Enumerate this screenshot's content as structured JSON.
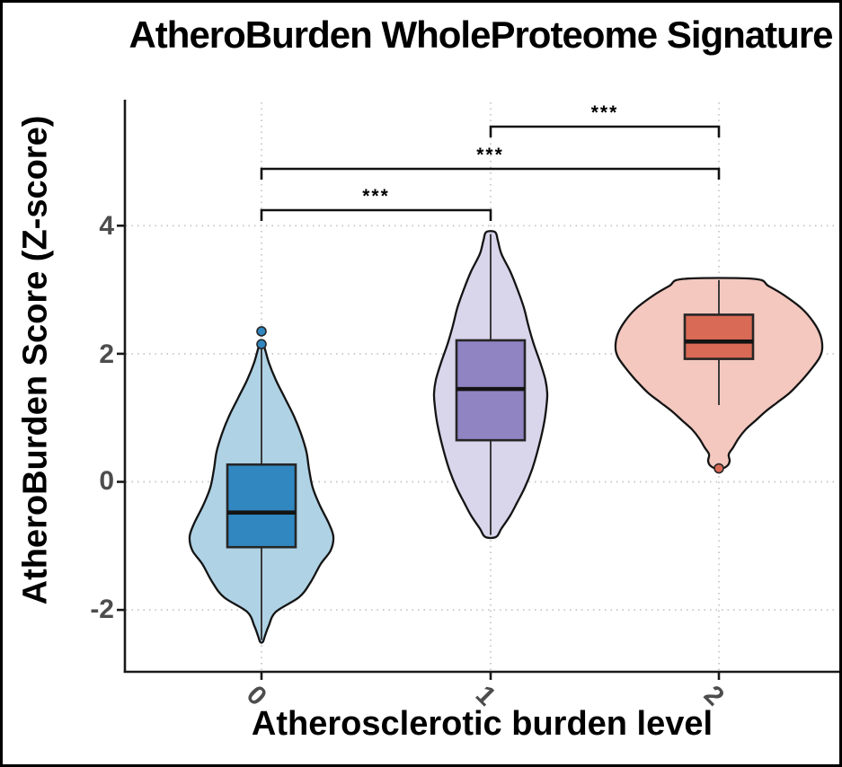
{
  "title": "AtheroBurden WholeProteome Signature",
  "axes": {
    "x_label": "Atherosclerotic burden level",
    "y_label": "AtheroBurden Score (Z-score)",
    "x_ticks": [
      "0",
      "1",
      "2"
    ],
    "y_ticks": [
      "4",
      "2",
      "0",
      "-2"
    ]
  },
  "significance": [
    {
      "pair": [
        0,
        1
      ],
      "label": "***",
      "line_y": 231
    },
    {
      "pair": [
        0,
        2
      ],
      "label": "***",
      "line_y": 185
    },
    {
      "pair": [
        1,
        2
      ],
      "label": "***",
      "line_y": 138
    }
  ],
  "colors": {
    "axis_text": "#4d4d4d",
    "title_text": "#000000",
    "grid": "#c9c9c9",
    "axis_line": "#1a1a1a",
    "bracket": "#111111",
    "group0_violin": "#AFD2E5",
    "group0_box": "#3187C0",
    "group1_violin": "#D9D5EB",
    "group1_box": "#9084C3",
    "group2_violin": "#F4C8BF",
    "group2_box": "#D96A55"
  },
  "chart_data": {
    "type": "violin",
    "title": "AtheroBurden WholeProteome Signature",
    "xlabel": "Atherosclerotic burden level",
    "ylabel": "AtheroBurden Score (Z-score)",
    "categories": [
      "0",
      "1",
      "2"
    ],
    "y_tick_values": [
      4,
      2,
      0,
      -2
    ],
    "ylim": [
      -3.0,
      6.0
    ],
    "grid": "dotted",
    "legend": "none",
    "significance_annotations": [
      {
        "groups": [
          "0",
          "1"
        ],
        "label": "***"
      },
      {
        "groups": [
          "0",
          "2"
        ],
        "label": "***"
      },
      {
        "groups": [
          "1",
          "2"
        ],
        "label": "***"
      }
    ],
    "series": [
      {
        "category": "0",
        "violin_fill": "#AFD2E5",
        "box_fill": "#3187C0",
        "median": -0.48,
        "q1": -1.02,
        "q3": 0.27,
        "whisker_low": -2.47,
        "whisker_high": 2.14,
        "outliers": [
          2.35,
          2.15
        ],
        "density": [
          [
            2.15,
            2
          ],
          [
            1.87,
            8
          ],
          [
            1.59,
            16
          ],
          [
            1.31,
            26
          ],
          [
            1.03,
            36
          ],
          [
            0.75,
            44
          ],
          [
            0.47,
            50
          ],
          [
            0.19,
            53
          ],
          [
            -0.09,
            57
          ],
          [
            -0.37,
            65
          ],
          [
            -0.65,
            75
          ],
          [
            -0.86,
            80
          ],
          [
            -1.07,
            77
          ],
          [
            -1.28,
            66
          ],
          [
            -1.56,
            55
          ],
          [
            -1.8,
            42
          ],
          [
            -2.03,
            16
          ],
          [
            -2.25,
            8
          ],
          [
            -2.4,
            4
          ],
          [
            -2.5,
            1.5
          ]
        ]
      },
      {
        "category": "1",
        "violin_fill": "#D9D5EB",
        "box_fill": "#9084C3",
        "median": 1.45,
        "q1": 0.65,
        "q3": 2.21,
        "whisker_low": -0.83,
        "whisker_high": 3.87,
        "outliers": [],
        "density": [
          [
            3.9,
            5
          ],
          [
            3.77,
            8
          ],
          [
            3.56,
            12
          ],
          [
            3.28,
            22
          ],
          [
            3.0,
            30
          ],
          [
            2.72,
            37
          ],
          [
            2.44,
            42
          ],
          [
            2.15,
            48
          ],
          [
            1.87,
            55
          ],
          [
            1.59,
            61
          ],
          [
            1.38,
            63
          ],
          [
            1.17,
            62
          ],
          [
            0.96,
            60
          ],
          [
            0.75,
            57
          ],
          [
            0.47,
            52
          ],
          [
            0.19,
            46
          ],
          [
            -0.09,
            38
          ],
          [
            -0.31,
            30
          ],
          [
            -0.52,
            22
          ],
          [
            -0.73,
            12
          ],
          [
            -0.86,
            6
          ]
        ]
      },
      {
        "category": "2",
        "violin_fill": "#F4C8BF",
        "box_fill": "#D96A55",
        "median": 2.19,
        "q1": 1.92,
        "q3": 2.61,
        "whisker_low": 1.2,
        "whisker_high": 3.15,
        "outliers": [
          0.21
        ],
        "density": [
          [
            3.17,
            39
          ],
          [
            3.06,
            55
          ],
          [
            2.92,
            72
          ],
          [
            2.71,
            92
          ],
          [
            2.5,
            105
          ],
          [
            2.29,
            113
          ],
          [
            2.08,
            115
          ],
          [
            1.94,
            112
          ],
          [
            1.8,
            105
          ],
          [
            1.66,
            97
          ],
          [
            1.52,
            88
          ],
          [
            1.38,
            78
          ],
          [
            1.24,
            65
          ],
          [
            1.1,
            52
          ],
          [
            0.96,
            41
          ],
          [
            0.82,
            30
          ],
          [
            0.68,
            22
          ],
          [
            0.54,
            16
          ],
          [
            0.43,
            11
          ],
          [
            0.33,
            12
          ],
          [
            0.26,
            10
          ],
          [
            0.21,
            4
          ]
        ]
      }
    ]
  }
}
